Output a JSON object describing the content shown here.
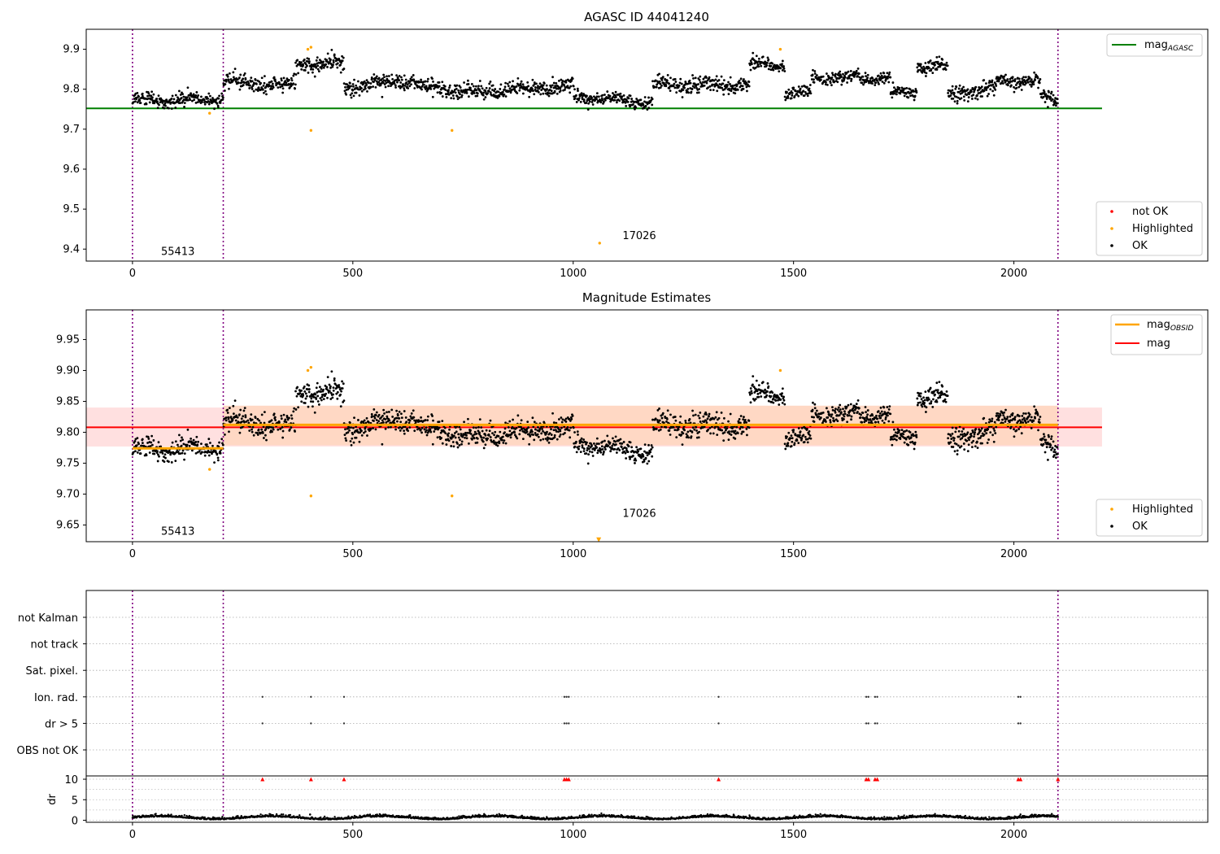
{
  "chart_data": [
    {
      "type": "scatter",
      "title": "AGASC ID 44041240",
      "xlim": [
        -105,
        2440
      ],
      "ylim": [
        9.37,
        9.95
      ],
      "xticks": [
        0,
        500,
        1000,
        1500,
        2000
      ],
      "yticks": [
        9.4,
        9.5,
        9.6,
        9.7,
        9.8,
        9.9
      ],
      "hlines": [
        {
          "name": "mag_AGASC",
          "y": 9.752,
          "x_range": [
            -105,
            2200
          ],
          "color": "#008000"
        }
      ],
      "vlines": [
        0,
        206,
        2100
      ],
      "obsid_annotations": [
        {
          "text": "55413",
          "x": 103,
          "y": 9.385
        },
        {
          "text": "17026",
          "x": 1150,
          "y": 9.425
        }
      ],
      "legend_top": [
        {
          "label": "mag",
          "sub": "AGASC",
          "color": "#008000"
        }
      ],
      "legend_bottom": [
        {
          "label": "not OK",
          "color": "#ff0000"
        },
        {
          "label": "Highlighted",
          "color": "#ffa500"
        },
        {
          "label": "OK",
          "color": "#000000"
        }
      ],
      "segments": [
        {
          "x": [
            0,
            206
          ],
          "mean": 9.775,
          "std": 0.01
        },
        {
          "x": [
            206,
            370
          ],
          "mean": 9.815,
          "std": 0.012,
          "drift": -0.01
        },
        {
          "x": [
            370,
            480
          ],
          "mean": 9.862,
          "std": 0.012
        },
        {
          "x": [
            480,
            640
          ],
          "mean": 9.815,
          "std": 0.012,
          "drift": 0.02
        },
        {
          "x": [
            640,
            780
          ],
          "mean": 9.8,
          "std": 0.012,
          "drift": -0.02
        },
        {
          "x": [
            780,
            1000
          ],
          "mean": 9.8,
          "std": 0.012,
          "drift": 0.015
        },
        {
          "x": [
            1000,
            1180
          ],
          "mean": 9.775,
          "std": 0.01,
          "drift": -0.015
        },
        {
          "x": [
            1180,
            1400
          ],
          "mean": 9.81,
          "std": 0.013
        },
        {
          "x": [
            1400,
            1480
          ],
          "mean": 9.862,
          "std": 0.01
        },
        {
          "x": [
            1480,
            1540
          ],
          "mean": 9.79,
          "std": 0.01
        },
        {
          "x": [
            1540,
            1720
          ],
          "mean": 9.828,
          "std": 0.01
        },
        {
          "x": [
            1720,
            1780
          ],
          "mean": 9.79,
          "std": 0.01
        },
        {
          "x": [
            1780,
            1850
          ],
          "mean": 9.855,
          "std": 0.012
        },
        {
          "x": [
            1850,
            1960
          ],
          "mean": 9.795,
          "std": 0.012,
          "drift": 0.015
        },
        {
          "x": [
            1960,
            2060
          ],
          "mean": 9.82,
          "std": 0.01
        },
        {
          "x": [
            2060,
            2100
          ],
          "mean": 9.78,
          "std": 0.01
        }
      ],
      "highlighted": [
        [
          175,
          9.74
        ],
        [
          398,
          9.9
        ],
        [
          405,
          9.905
        ],
        [
          405,
          9.697
        ],
        [
          725,
          9.697
        ],
        [
          1060,
          9.415
        ],
        [
          1470,
          9.9
        ]
      ]
    },
    {
      "type": "scatter",
      "title": "Magnitude Estimates",
      "xlim": [
        -105,
        2440
      ],
      "ylim": [
        9.623,
        9.998
      ],
      "xticks": [
        0,
        500,
        1000,
        1500,
        2000
      ],
      "yticks": [
        9.65,
        9.7,
        9.75,
        9.8,
        9.85,
        9.9,
        9.95
      ],
      "mag": {
        "y": 9.808,
        "band": [
          9.777,
          9.84
        ],
        "x_range": [
          -105,
          2200
        ],
        "color": "#ff0000",
        "band_color": "#ffe0e0"
      },
      "mag_obsid": [
        {
          "x": [
            0,
            206
          ],
          "y": 9.774,
          "band": [
            9.771,
            9.778
          ]
        },
        {
          "x": [
            206,
            2100
          ],
          "y": 9.812,
          "band": [
            9.779,
            9.843
          ],
          "band_color": "#ffd8c4"
        }
      ],
      "vlines": [
        0,
        206,
        2100
      ],
      "obsid_annotations": [
        {
          "text": "55413",
          "x": 103,
          "y": 9.634
        },
        {
          "text": "17026",
          "x": 1150,
          "y": 9.663
        }
      ],
      "legend_top": [
        {
          "label": "mag",
          "sub": "OBSID",
          "color": "#ffa500"
        },
        {
          "label": "mag",
          "color": "#ff0000"
        }
      ],
      "legend_bottom": [
        {
          "label": "Highlighted",
          "color": "#ffa500"
        },
        {
          "label": "OK",
          "color": "#000000"
        }
      ],
      "highlighted": [
        [
          175,
          9.74
        ],
        [
          398,
          9.9
        ],
        [
          405,
          9.905
        ],
        [
          405,
          9.697
        ],
        [
          725,
          9.697
        ],
        [
          1470,
          9.9
        ]
      ],
      "triangle": [
        1058,
        9.626
      ]
    },
    {
      "type": "scatter",
      "title": "",
      "xlim": [
        -105,
        2440
      ],
      "xticks": [
        0,
        500,
        1000,
        1500,
        2000
      ],
      "flag_labels": [
        "not Kalman",
        "not track",
        "Sat. pixel.",
        "Ion. rad.",
        "dr > 5",
        "OBS not OK"
      ],
      "flag_events": {
        "Ion. rad.": [
          295,
          405,
          480,
          980,
          985,
          990,
          1330,
          1665,
          1670,
          1685,
          1690,
          2010,
          2015
        ],
        "dr > 5": [
          295,
          405,
          480,
          980,
          985,
          990,
          1330,
          1665,
          1670,
          1685,
          1690,
          2010,
          2015
        ]
      },
      "dr_ylabel": "dr",
      "dr_ylim": [
        -0.5,
        10.8
      ],
      "dr_yticks": [
        0,
        5,
        10
      ],
      "dr_clipped_value": 10,
      "vlines": [
        0,
        206,
        2100
      ]
    }
  ]
}
